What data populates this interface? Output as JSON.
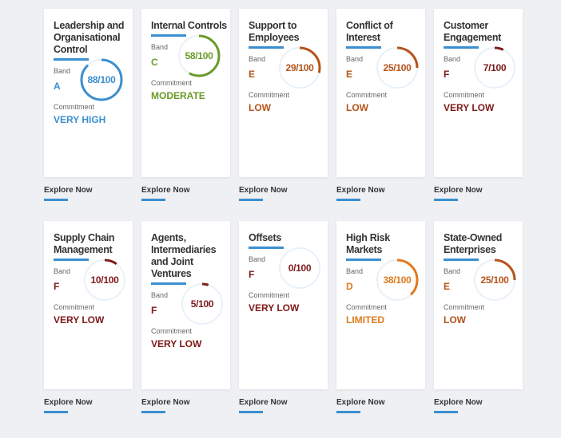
{
  "labels": {
    "band": "Band",
    "commitment": "Commitment",
    "explore": "Explore Now"
  },
  "cards": [
    {
      "title": "Leadership and Organisational Control",
      "band": "A",
      "score": 88,
      "score_text": "88/100",
      "commitment": "VERY HIGH",
      "color": "#3a8fd0"
    },
    {
      "title": "Internal Controls",
      "band": "C",
      "score": 58,
      "score_text": "58/100",
      "commitment": "MODERATE",
      "color": "#6a9a28"
    },
    {
      "title": "Support to Employees",
      "band": "E",
      "score": 29,
      "score_text": "29/100",
      "commitment": "LOW",
      "color": "#b5531a"
    },
    {
      "title": "Conflict of Interest",
      "band": "E",
      "score": 25,
      "score_text": "25/100",
      "commitment": "LOW",
      "color": "#b5531a"
    },
    {
      "title": "Customer Engagement",
      "band": "F",
      "score": 7,
      "score_text": "7/100",
      "commitment": "VERY LOW",
      "color": "#7e1a1a"
    },
    {
      "title": "Supply Chain Management",
      "band": "F",
      "score": 10,
      "score_text": "10/100",
      "commitment": "VERY LOW",
      "color": "#7e1a1a"
    },
    {
      "title": "Agents, Intermediaries and Joint Ventures",
      "band": "F",
      "score": 5,
      "score_text": "5/100",
      "commitment": "VERY LOW",
      "color": "#7e1a1a"
    },
    {
      "title": "Offsets",
      "band": "F",
      "score": 0,
      "score_text": "0/100",
      "commitment": "VERY LOW",
      "color": "#7e1a1a"
    },
    {
      "title": "High Risk Markets",
      "band": "D",
      "score": 38,
      "score_text": "38/100",
      "commitment": "LIMITED",
      "color": "#e07a1f"
    },
    {
      "title": "State-Owned Enterprises",
      "band": "E",
      "score": 25,
      "score_text": "25/100",
      "commitment": "LOW",
      "color": "#b5531a"
    }
  ]
}
